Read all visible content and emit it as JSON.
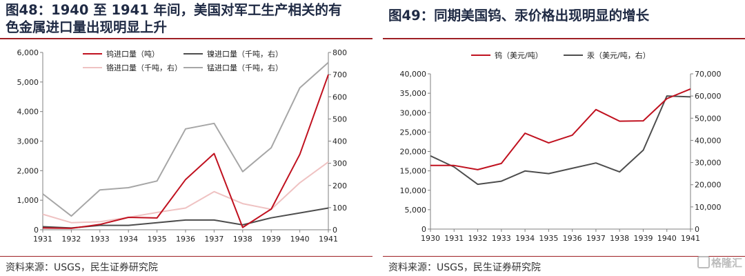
{
  "left": {
    "title_line1": "图48：1940 至 1941 年间，美国对军工生产相关的有",
    "title_line2": "色金属进口量出现明显上升",
    "source": "资料来源：USGS，民生证券研究院"
  },
  "right": {
    "title": "图49：同期美国钨、汞价格出现明显的增长",
    "source": "资料来源：USGS，民生证券研究院"
  },
  "watermark": {
    "text": "格隆汇"
  },
  "chart_data": [
    {
      "type": "line",
      "categories": [
        "1931",
        "1932",
        "1933",
        "1934",
        "1935",
        "1936",
        "1937",
        "1938",
        "1939",
        "1940",
        "1941"
      ],
      "ylim": [
        0,
        6000
      ],
      "y2lim": [
        0,
        800
      ],
      "yticks": [
        "0",
        "1,000",
        "2,000",
        "3,000",
        "4,000",
        "5,000",
        "6,000"
      ],
      "y2ticks": [
        "0",
        "100",
        "200",
        "300",
        "400",
        "500",
        "600",
        "700",
        "800"
      ],
      "legend_position": "top",
      "series": [
        {
          "name": "钨进口量（吨）",
          "axis": "left",
          "color": "#c0111f",
          "values": [
            60,
            50,
            180,
            420,
            400,
            1700,
            2580,
            80,
            700,
            2550,
            5250
          ]
        },
        {
          "name": "镍进口量（千吨，右）",
          "axis": "right",
          "color": "#4d4d4d",
          "values": [
            14,
            8,
            20,
            20,
            32,
            44,
            44,
            22,
            54,
            76,
            98
          ]
        },
        {
          "name": "铬进口量（千吨，右）",
          "axis": "right",
          "color": "#efc2c2",
          "values": [
            70,
            32,
            36,
            56,
            78,
            98,
            172,
            118,
            92,
            212,
            306
          ]
        },
        {
          "name": "锰进口量（千吨，右）",
          "axis": "right",
          "color": "#a6a6a6",
          "values": [
            162,
            62,
            180,
            190,
            220,
            455,
            480,
            262,
            370,
            640,
            755
          ]
        }
      ]
    },
    {
      "type": "line",
      "categories": [
        "1930",
        "1931",
        "1932",
        "1933",
        "1934",
        "1935",
        "1936",
        "1937",
        "1938",
        "1939",
        "1940",
        "1941"
      ],
      "ylim": [
        0,
        40000
      ],
      "y2lim": [
        0,
        70000
      ],
      "yticks": [
        "0",
        "5,000",
        "10,000",
        "15,000",
        "20,000",
        "25,000",
        "30,000",
        "35,000",
        "40,000"
      ],
      "y2ticks": [
        "0",
        "10,000",
        "20,000",
        "30,000",
        "40,000",
        "50,000",
        "60,000",
        "70,000"
      ],
      "legend_position": "top",
      "series": [
        {
          "name": "钨（美元/吨）",
          "axis": "left",
          "color": "#c0111f",
          "values": [
            16400,
            16400,
            15300,
            16900,
            24700,
            22200,
            24200,
            30800,
            27800,
            27900,
            33600,
            36100
          ]
        },
        {
          "name": "汞（美元/吨，右）",
          "axis": "right",
          "color": "#4d4d4d",
          "values": [
            33000,
            28000,
            20200,
            21600,
            26200,
            25000,
            27400,
            29800,
            25800,
            35600,
            60000,
            59600
          ]
        }
      ]
    }
  ]
}
